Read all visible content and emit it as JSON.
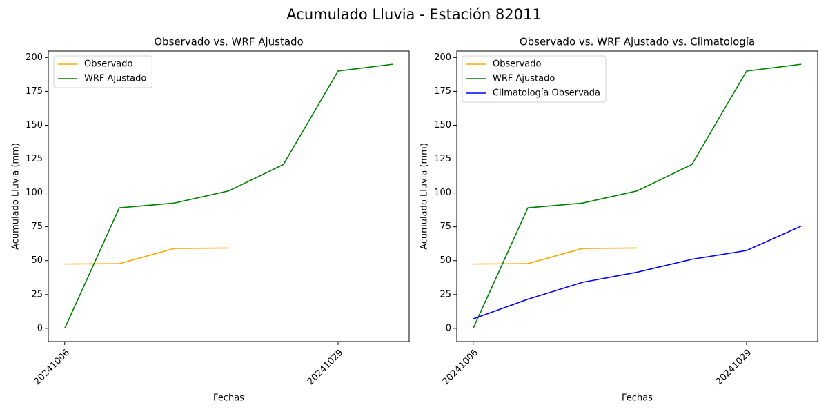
{
  "title": "Acumulado Lluvia - Estación 82011",
  "chart_data": [
    {
      "type": "line",
      "title": "Observado vs. WRF Ajustado",
      "x_label": "Fechas",
      "y_label": "Acumulado Lluvia (mm)",
      "categories": [
        "20241006",
        null,
        null,
        null,
        null,
        "20241029",
        null
      ],
      "series": [
        {
          "name": "Observado",
          "color": "orange",
          "values": [
            47.5,
            47.8,
            59,
            59.3,
            null,
            null,
            null
          ]
        },
        {
          "name": "WRF Ajustado",
          "color": "green",
          "values": [
            0,
            89,
            92.5,
            101.5,
            121,
            190,
            195
          ]
        }
      ],
      "ylim": [
        -9.75,
        204.75
      ],
      "yticks": [
        0,
        25,
        50,
        75,
        100,
        125,
        150,
        175,
        200
      ],
      "legend": "upper left"
    },
    {
      "type": "line",
      "title": "Observado vs. WRF Ajustado vs. Climatología",
      "x_label": "Fechas",
      "y_label": "Acumulado Lluvia (mm)",
      "categories": [
        "20241006",
        null,
        null,
        null,
        null,
        "20241029",
        null
      ],
      "series": [
        {
          "name": "Observado",
          "color": "orange",
          "values": [
            47.5,
            47.8,
            59,
            59.3,
            null,
            null,
            null
          ]
        },
        {
          "name": "WRF Ajustado",
          "color": "green",
          "values": [
            0,
            89,
            92.5,
            101.5,
            121,
            190,
            195
          ]
        },
        {
          "name": "Climatología Observada",
          "color": "blue",
          "values": [
            7,
            21.5,
            34,
            41.5,
            51,
            57.5,
            75.5
          ]
        }
      ],
      "ylim": [
        -9.75,
        204.75
      ],
      "yticks": [
        0,
        25,
        50,
        75,
        100,
        125,
        150,
        175,
        200
      ],
      "legend": "upper left"
    }
  ]
}
